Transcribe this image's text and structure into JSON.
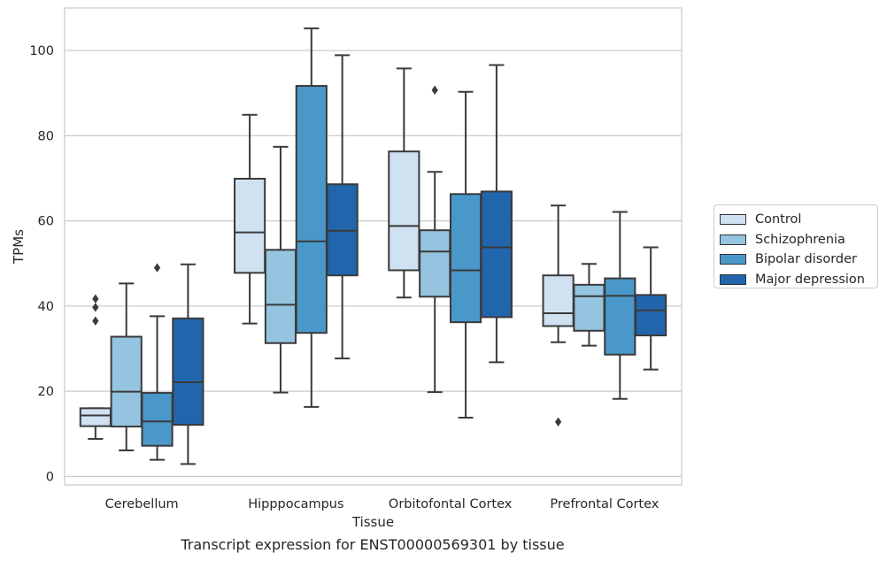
{
  "caption": "Transcript expression for ENST00000569301 by tissue",
  "chart_data": {
    "type": "box",
    "xlabel": "Tissue",
    "ylabel": "TPMs",
    "ylim": [
      -2,
      110
    ],
    "yticks": [
      0,
      20,
      40,
      60,
      80,
      100
    ],
    "grid": "horizontal",
    "legend_placement": "right",
    "categories": [
      "Cerebellum",
      "Hipppocampus",
      "Orbitofontal Cortex",
      "Prefrontal Cortex"
    ],
    "series": [
      {
        "name": "Control",
        "color": "#d0e1f2",
        "boxes": [
          {
            "whislo": 8.8,
            "q1": 11.8,
            "med": 14.3,
            "q3": 16.0,
            "whishi": 16.0,
            "fliers": [
              36.5,
              39.7,
              41.7
            ]
          },
          {
            "whislo": 35.9,
            "q1": 47.8,
            "med": 57.3,
            "q3": 69.9,
            "whishi": 84.9,
            "fliers": []
          },
          {
            "whislo": 42.0,
            "q1": 48.4,
            "med": 58.8,
            "q3": 76.3,
            "whishi": 95.8,
            "fliers": []
          },
          {
            "whislo": 31.5,
            "q1": 35.3,
            "med": 38.3,
            "q3": 47.2,
            "whishi": 63.6,
            "fliers": [
              12.8
            ]
          }
        ]
      },
      {
        "name": "Schizophrenia",
        "color": "#94c4df",
        "boxes": [
          {
            "whislo": 6.1,
            "q1": 11.7,
            "med": 19.9,
            "q3": 32.8,
            "whishi": 45.3,
            "fliers": []
          },
          {
            "whislo": 19.7,
            "q1": 31.3,
            "med": 40.3,
            "q3": 53.2,
            "whishi": 77.4,
            "fliers": []
          },
          {
            "whislo": 19.8,
            "q1": 42.2,
            "med": 52.8,
            "q3": 57.8,
            "whishi": 71.5,
            "fliers": [
              90.7
            ]
          },
          {
            "whislo": 30.7,
            "q1": 34.2,
            "med": 42.3,
            "q3": 45.0,
            "whishi": 49.9,
            "fliers": []
          }
        ]
      },
      {
        "name": "Bipolar disorder",
        "color": "#4a98c9",
        "boxes": [
          {
            "whislo": 3.9,
            "q1": 7.2,
            "med": 12.9,
            "q3": 19.6,
            "whishi": 37.6,
            "fliers": [
              49.0
            ]
          },
          {
            "whislo": 16.3,
            "q1": 33.7,
            "med": 55.2,
            "q3": 91.7,
            "whishi": 105.2,
            "fliers": []
          },
          {
            "whislo": 13.8,
            "q1": 36.2,
            "med": 48.4,
            "q3": 66.3,
            "whishi": 90.3,
            "fliers": []
          },
          {
            "whislo": 18.2,
            "q1": 28.6,
            "med": 42.4,
            "q3": 46.5,
            "whishi": 62.1,
            "fliers": []
          }
        ]
      },
      {
        "name": "Major depression",
        "color": "#2166ac",
        "boxes": [
          {
            "whislo": 2.9,
            "q1": 12.1,
            "med": 22.1,
            "q3": 37.1,
            "whishi": 49.8,
            "fliers": []
          },
          {
            "whislo": 27.7,
            "q1": 47.2,
            "med": 57.7,
            "q3": 68.6,
            "whishi": 98.9,
            "fliers": []
          },
          {
            "whislo": 26.8,
            "q1": 37.4,
            "med": 53.8,
            "q3": 66.9,
            "whishi": 96.6,
            "fliers": []
          },
          {
            "whislo": 25.1,
            "q1": 33.1,
            "med": 39.0,
            "q3": 42.6,
            "whishi": 53.8,
            "fliers": []
          }
        ]
      }
    ]
  }
}
